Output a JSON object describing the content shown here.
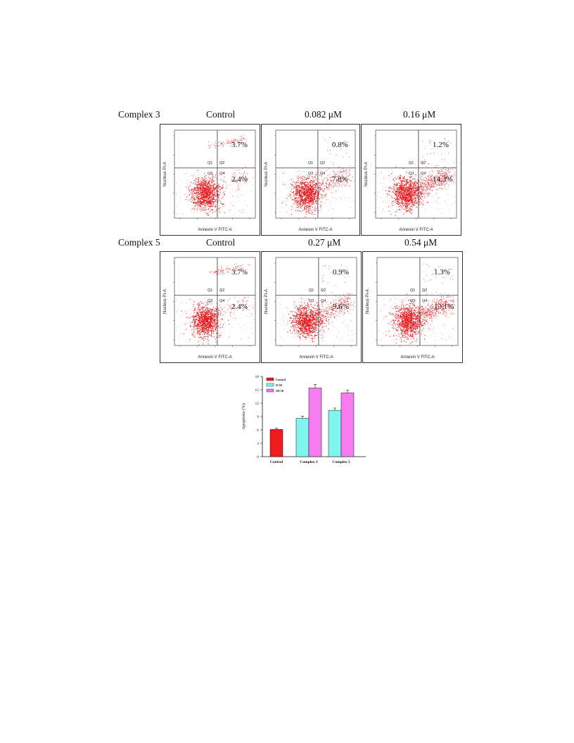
{
  "row_labels": [
    "Complex 3",
    "Complex 5"
  ],
  "flow_axes": {
    "x_label": "Annexin V FITC-A",
    "y_label": "Nucleus PI-A",
    "quadrants": [
      "Q1",
      "Q2",
      "Q3",
      "Q4"
    ]
  },
  "flow_panels": [
    {
      "title": "Control",
      "q2": "3.7%",
      "q4": "2.4%"
    },
    {
      "title": "0.082 μM",
      "q2": "0.8%",
      "q4": "7.8%"
    },
    {
      "title": "0.16 μM",
      "q2": "1.2%",
      "q4": "14.3%"
    },
    {
      "title": "Control",
      "q2": "3.7%",
      "q4": "2.4%"
    },
    {
      "title": "0.27 μM",
      "q2": "0.9%",
      "q4": "9.6%"
    },
    {
      "title": "0.54 μM",
      "q2": "1.3%",
      "q4": "13.1%"
    }
  ],
  "colors": {
    "dots": "#e8171c",
    "control": "#ee1c1c",
    "ic50": "#7ff5ef",
    "two_ic50": "#f77cf2"
  },
  "chart_data": {
    "type": "bar",
    "categories": [
      "Control",
      "Complex 3",
      "Complex 5"
    ],
    "series": [
      {
        "name": "Control",
        "values": [
          6.1,
          null,
          null
        ],
        "errors": [
          0.3,
          null,
          null
        ]
      },
      {
        "name": "IC50",
        "values": [
          null,
          8.6,
          10.4
        ],
        "errors": [
          null,
          0.5,
          0.5
        ]
      },
      {
        "name": "2IC50",
        "values": [
          null,
          15.4,
          14.3
        ],
        "errors": [
          null,
          0.8,
          0.6
        ]
      }
    ],
    "ylabel": "Apoptosis (%)",
    "ylim": [
      0,
      18
    ],
    "yticks": [
      0,
      3,
      6,
      9,
      12,
      15,
      18
    ],
    "legend": [
      "Control",
      "IC50",
      "2IC50"
    ],
    "legend_position": "top-left"
  }
}
